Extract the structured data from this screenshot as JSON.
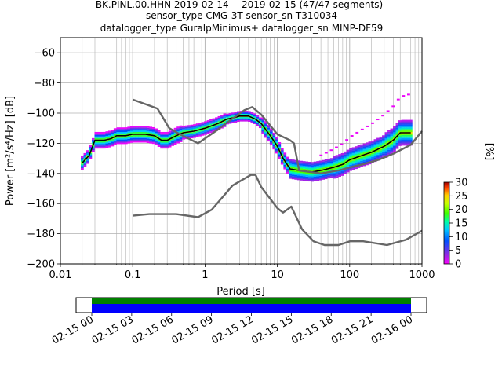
{
  "chart_data": {
    "type": "heatmap",
    "title_lines": [
      "BK.PINL.00.HHN   2019-02-14 -- 2019-02-15  (47/47 segments)",
      "sensor_type CMG-3T sensor_sn T310034",
      "datalogger_type GuralpMinimus+ datalogger_sn MINP-DF59"
    ],
    "xlabel": "Period [s]",
    "ylabel": "Power [m²/s⁴/Hz] [dB]",
    "x_scale": "log",
    "xlim": [
      0.01,
      1000
    ],
    "ylim": [
      -200,
      -50
    ],
    "x_ticks": [
      0.01,
      0.1,
      1,
      10,
      100,
      1000
    ],
    "x_tick_labels": [
      "0.01",
      "0.1",
      "1",
      "10",
      "100",
      "1000"
    ],
    "y_ticks": [
      -200,
      -180,
      -160,
      -140,
      -120,
      -100,
      -80,
      -60
    ],
    "y_tick_labels": [
      "−200",
      "−180",
      "−160",
      "−140",
      "−120",
      "−100",
      "−80",
      "−60"
    ],
    "grid": true,
    "colorbar": {
      "label": "[%]",
      "min": 0,
      "max": 30,
      "ticks": [
        0,
        5,
        10,
        15,
        20,
        25,
        30
      ],
      "tick_labels": [
        "0",
        "5",
        "10",
        "15",
        "20",
        "25",
        "30"
      ]
    },
    "series": [
      {
        "role": "mean_psd",
        "color": "#000000",
        "points": [
          [
            0.02,
            -133
          ],
          [
            0.025,
            -128
          ],
          [
            0.03,
            -118
          ],
          [
            0.04,
            -118
          ],
          [
            0.05,
            -117
          ],
          [
            0.06,
            -115
          ],
          [
            0.08,
            -115
          ],
          [
            0.1,
            -114
          ],
          [
            0.15,
            -114
          ],
          [
            0.2,
            -115
          ],
          [
            0.25,
            -118
          ],
          [
            0.3,
            -118
          ],
          [
            0.4,
            -115
          ],
          [
            0.5,
            -113
          ],
          [
            0.7,
            -112
          ],
          [
            1,
            -110
          ],
          [
            1.5,
            -107
          ],
          [
            2,
            -104
          ],
          [
            2.5,
            -103
          ],
          [
            3,
            -102
          ],
          [
            4,
            -102
          ],
          [
            5,
            -104
          ],
          [
            6,
            -107
          ],
          [
            8,
            -115
          ],
          [
            10,
            -122
          ],
          [
            12,
            -130
          ],
          [
            15,
            -137
          ],
          [
            20,
            -138
          ],
          [
            30,
            -139
          ],
          [
            40,
            -138
          ],
          [
            60,
            -136
          ],
          [
            80,
            -134
          ],
          [
            100,
            -131
          ],
          [
            150,
            -128
          ],
          [
            200,
            -126
          ],
          [
            300,
            -122
          ],
          [
            400,
            -118
          ],
          [
            500,
            -113
          ],
          [
            700,
            -113
          ]
        ]
      },
      {
        "role": "noise_model_high",
        "color": "#666666",
        "points": [
          [
            0.1,
            -91
          ],
          [
            0.17,
            -95
          ],
          [
            0.22,
            -97
          ],
          [
            0.32,
            -110
          ],
          [
            0.45,
            -114
          ],
          [
            0.8,
            -120
          ],
          [
            1.5,
            -111
          ],
          [
            2.5,
            -103
          ],
          [
            3.5,
            -98
          ],
          [
            4.5,
            -96
          ],
          [
            6,
            -101
          ],
          [
            10,
            -114
          ],
          [
            15,
            -118
          ],
          [
            17,
            -120
          ],
          [
            20,
            -138
          ],
          [
            40,
            -140
          ],
          [
            70,
            -138
          ],
          [
            100,
            -136
          ],
          [
            150,
            -134
          ],
          [
            250,
            -131
          ],
          [
            400,
            -127
          ],
          [
            700,
            -121
          ],
          [
            1000,
            -112
          ]
        ]
      },
      {
        "role": "noise_model_low",
        "color": "#666666",
        "points": [
          [
            0.1,
            -168
          ],
          [
            0.17,
            -167
          ],
          [
            0.4,
            -167
          ],
          [
            0.8,
            -169
          ],
          [
            1.24,
            -164
          ],
          [
            2.4,
            -148
          ],
          [
            4.3,
            -141
          ],
          [
            5,
            -141
          ],
          [
            6,
            -149
          ],
          [
            10,
            -163
          ],
          [
            12,
            -166
          ],
          [
            15.6,
            -162
          ],
          [
            21.9,
            -177
          ],
          [
            31.6,
            -185
          ],
          [
            45,
            -187.5
          ],
          [
            70,
            -187.5
          ],
          [
            101,
            -185
          ],
          [
            154,
            -185
          ],
          [
            328,
            -187.5
          ],
          [
            600,
            -184
          ],
          [
            1000,
            -178
          ]
        ]
      }
    ],
    "timeline": {
      "tick_labels": [
        "02-15 00",
        "02-15 03",
        "02-15 06",
        "02-15 09",
        "02-15 12",
        "02-15 15",
        "02-15 18",
        "02-15 21",
        "02-16 00"
      ],
      "bar_colors": [
        "#008000",
        "#0000ff"
      ]
    }
  }
}
